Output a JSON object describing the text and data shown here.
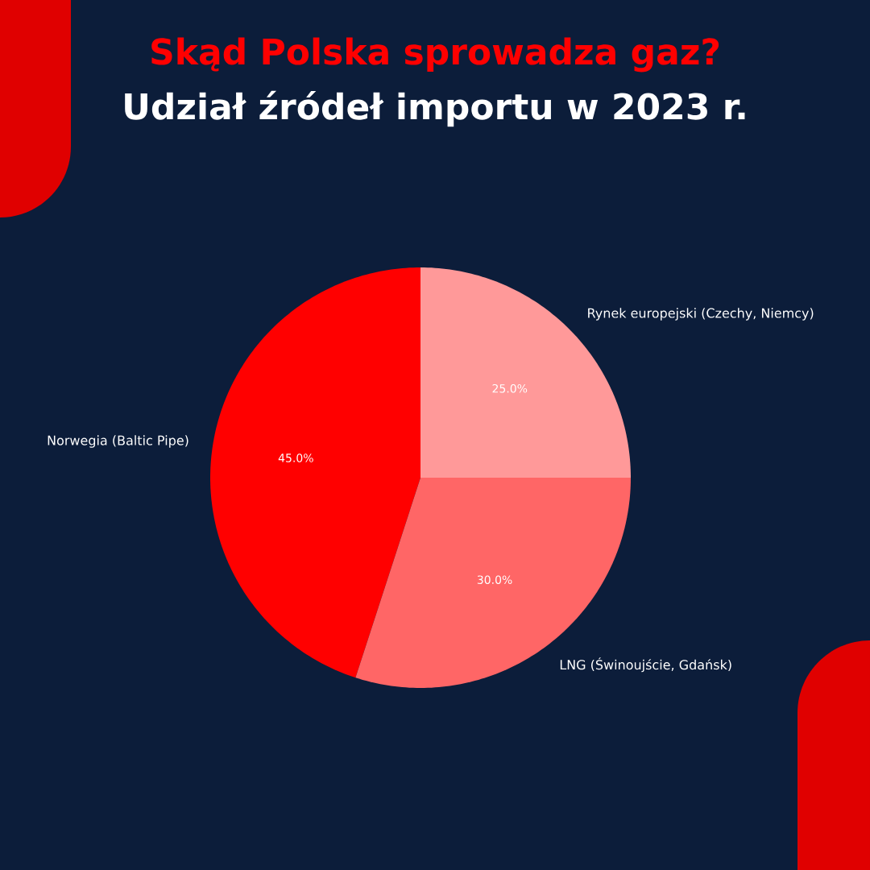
{
  "chart_data": {
    "type": "pie",
    "title": "Skąd Polska sprowadza gaz?",
    "subtitle": "Udział źródeł importu w 2023 r.",
    "categories": [
      "Norwegia (Baltic Pipe)",
      "LNG (Świnoujście, Gdańsk)",
      "Rynek europejski (Czechy, Niemcy)"
    ],
    "values": [
      45,
      30,
      25
    ],
    "colors": [
      "#ff0000",
      "#ff6666",
      "#ff9999"
    ],
    "value_labels": [
      "45.0%",
      "30.0%",
      "25.0%"
    ]
  }
}
